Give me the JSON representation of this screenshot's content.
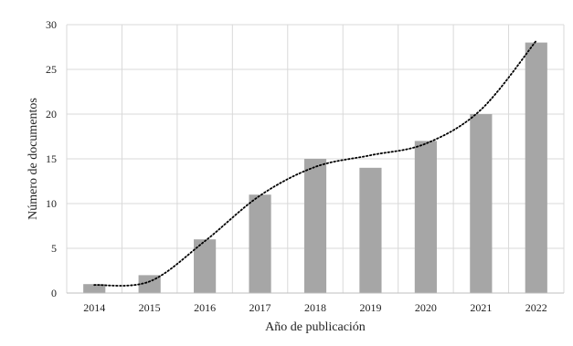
{
  "chart_data": {
    "type": "bar",
    "title": "",
    "xlabel": "Año de publicación",
    "ylabel": "Número de documentos",
    "categories": [
      "2014",
      "2015",
      "2016",
      "2017",
      "2018",
      "2019",
      "2020",
      "2021",
      "2022"
    ],
    "values": [
      1,
      2,
      6,
      11,
      15,
      14,
      17,
      20,
      28
    ],
    "ylim": [
      0,
      30
    ],
    "yticks": [
      "0",
      "5",
      "10",
      "15",
      "20",
      "25",
      "30"
    ],
    "grid": true,
    "trendline": {
      "type": "polynomial",
      "style": "dotted",
      "values": [
        0.9,
        1.3,
        5.8,
        10.9,
        14.1,
        15.4,
        16.7,
        20.5,
        28.2
      ]
    },
    "colors": {
      "bar": "#a6a6a6",
      "grid": "#d9d9d9",
      "axis": "#bfbfbf",
      "trendline": "#000000"
    }
  }
}
